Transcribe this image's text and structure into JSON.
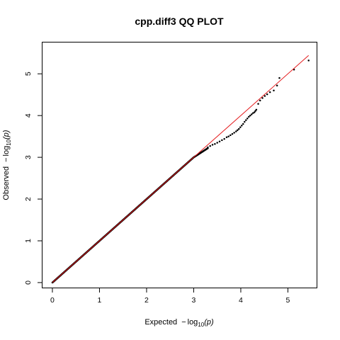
{
  "chart_data": {
    "type": "scatter",
    "title": "cpp.diff3 QQ PLOT",
    "xlabel": {
      "prefix": "Expected",
      "neg": "−",
      "log": "log",
      "sub": "10",
      "arg": "(p)"
    },
    "ylabel": {
      "prefix": "Observed",
      "neg": "−",
      "log": "log",
      "sub": "10",
      "arg": "(p)"
    },
    "xlim": [
      -0.21,
      5.61
    ],
    "ylim": [
      -0.12,
      5.75
    ],
    "xticks": [
      "0",
      "1",
      "2",
      "3",
      "4",
      "5"
    ],
    "yticks": [
      "0",
      "1",
      "2",
      "3",
      "4",
      "5"
    ],
    "reference_line": {
      "color": "#e41a1c",
      "x": [
        0,
        5.44
      ],
      "y": [
        0,
        5.44
      ]
    },
    "point_color": "#000000",
    "points_dense": {
      "x_start": 0.0,
      "x_end": 3.3,
      "step": 0.005,
      "deviation_start": 3.0,
      "deviation_rate": 0.27
    },
    "points_tail": [
      [
        3.3,
        3.24
      ],
      [
        3.35,
        3.27
      ],
      [
        3.4,
        3.3
      ],
      [
        3.45,
        3.32
      ],
      [
        3.5,
        3.35
      ],
      [
        3.55,
        3.38
      ],
      [
        3.6,
        3.41
      ],
      [
        3.65,
        3.44
      ],
      [
        3.7,
        3.48
      ],
      [
        3.74,
        3.5
      ],
      [
        3.78,
        3.53
      ],
      [
        3.82,
        3.56
      ],
      [
        3.86,
        3.59
      ],
      [
        3.9,
        3.62
      ],
      [
        3.93,
        3.65
      ],
      [
        3.96,
        3.68
      ],
      [
        3.99,
        3.72
      ],
      [
        4.02,
        3.76
      ],
      [
        4.05,
        3.8
      ],
      [
        4.08,
        3.85
      ],
      [
        4.11,
        3.89
      ],
      [
        4.14,
        3.93
      ],
      [
        4.17,
        3.97
      ],
      [
        4.2,
        4.0
      ],
      [
        4.23,
        4.03
      ],
      [
        4.26,
        4.06
      ],
      [
        4.29,
        4.08
      ],
      [
        4.31,
        4.11
      ],
      [
        4.33,
        4.14
      ],
      [
        4.37,
        4.28
      ],
      [
        4.41,
        4.36
      ],
      [
        4.46,
        4.42
      ],
      [
        4.51,
        4.47
      ],
      [
        4.56,
        4.51
      ],
      [
        4.62,
        4.56
      ],
      [
        4.7,
        4.6
      ],
      [
        4.77,
        4.72
      ],
      [
        4.82,
        4.9
      ],
      [
        5.13,
        5.1
      ],
      [
        5.44,
        5.32
      ]
    ]
  }
}
